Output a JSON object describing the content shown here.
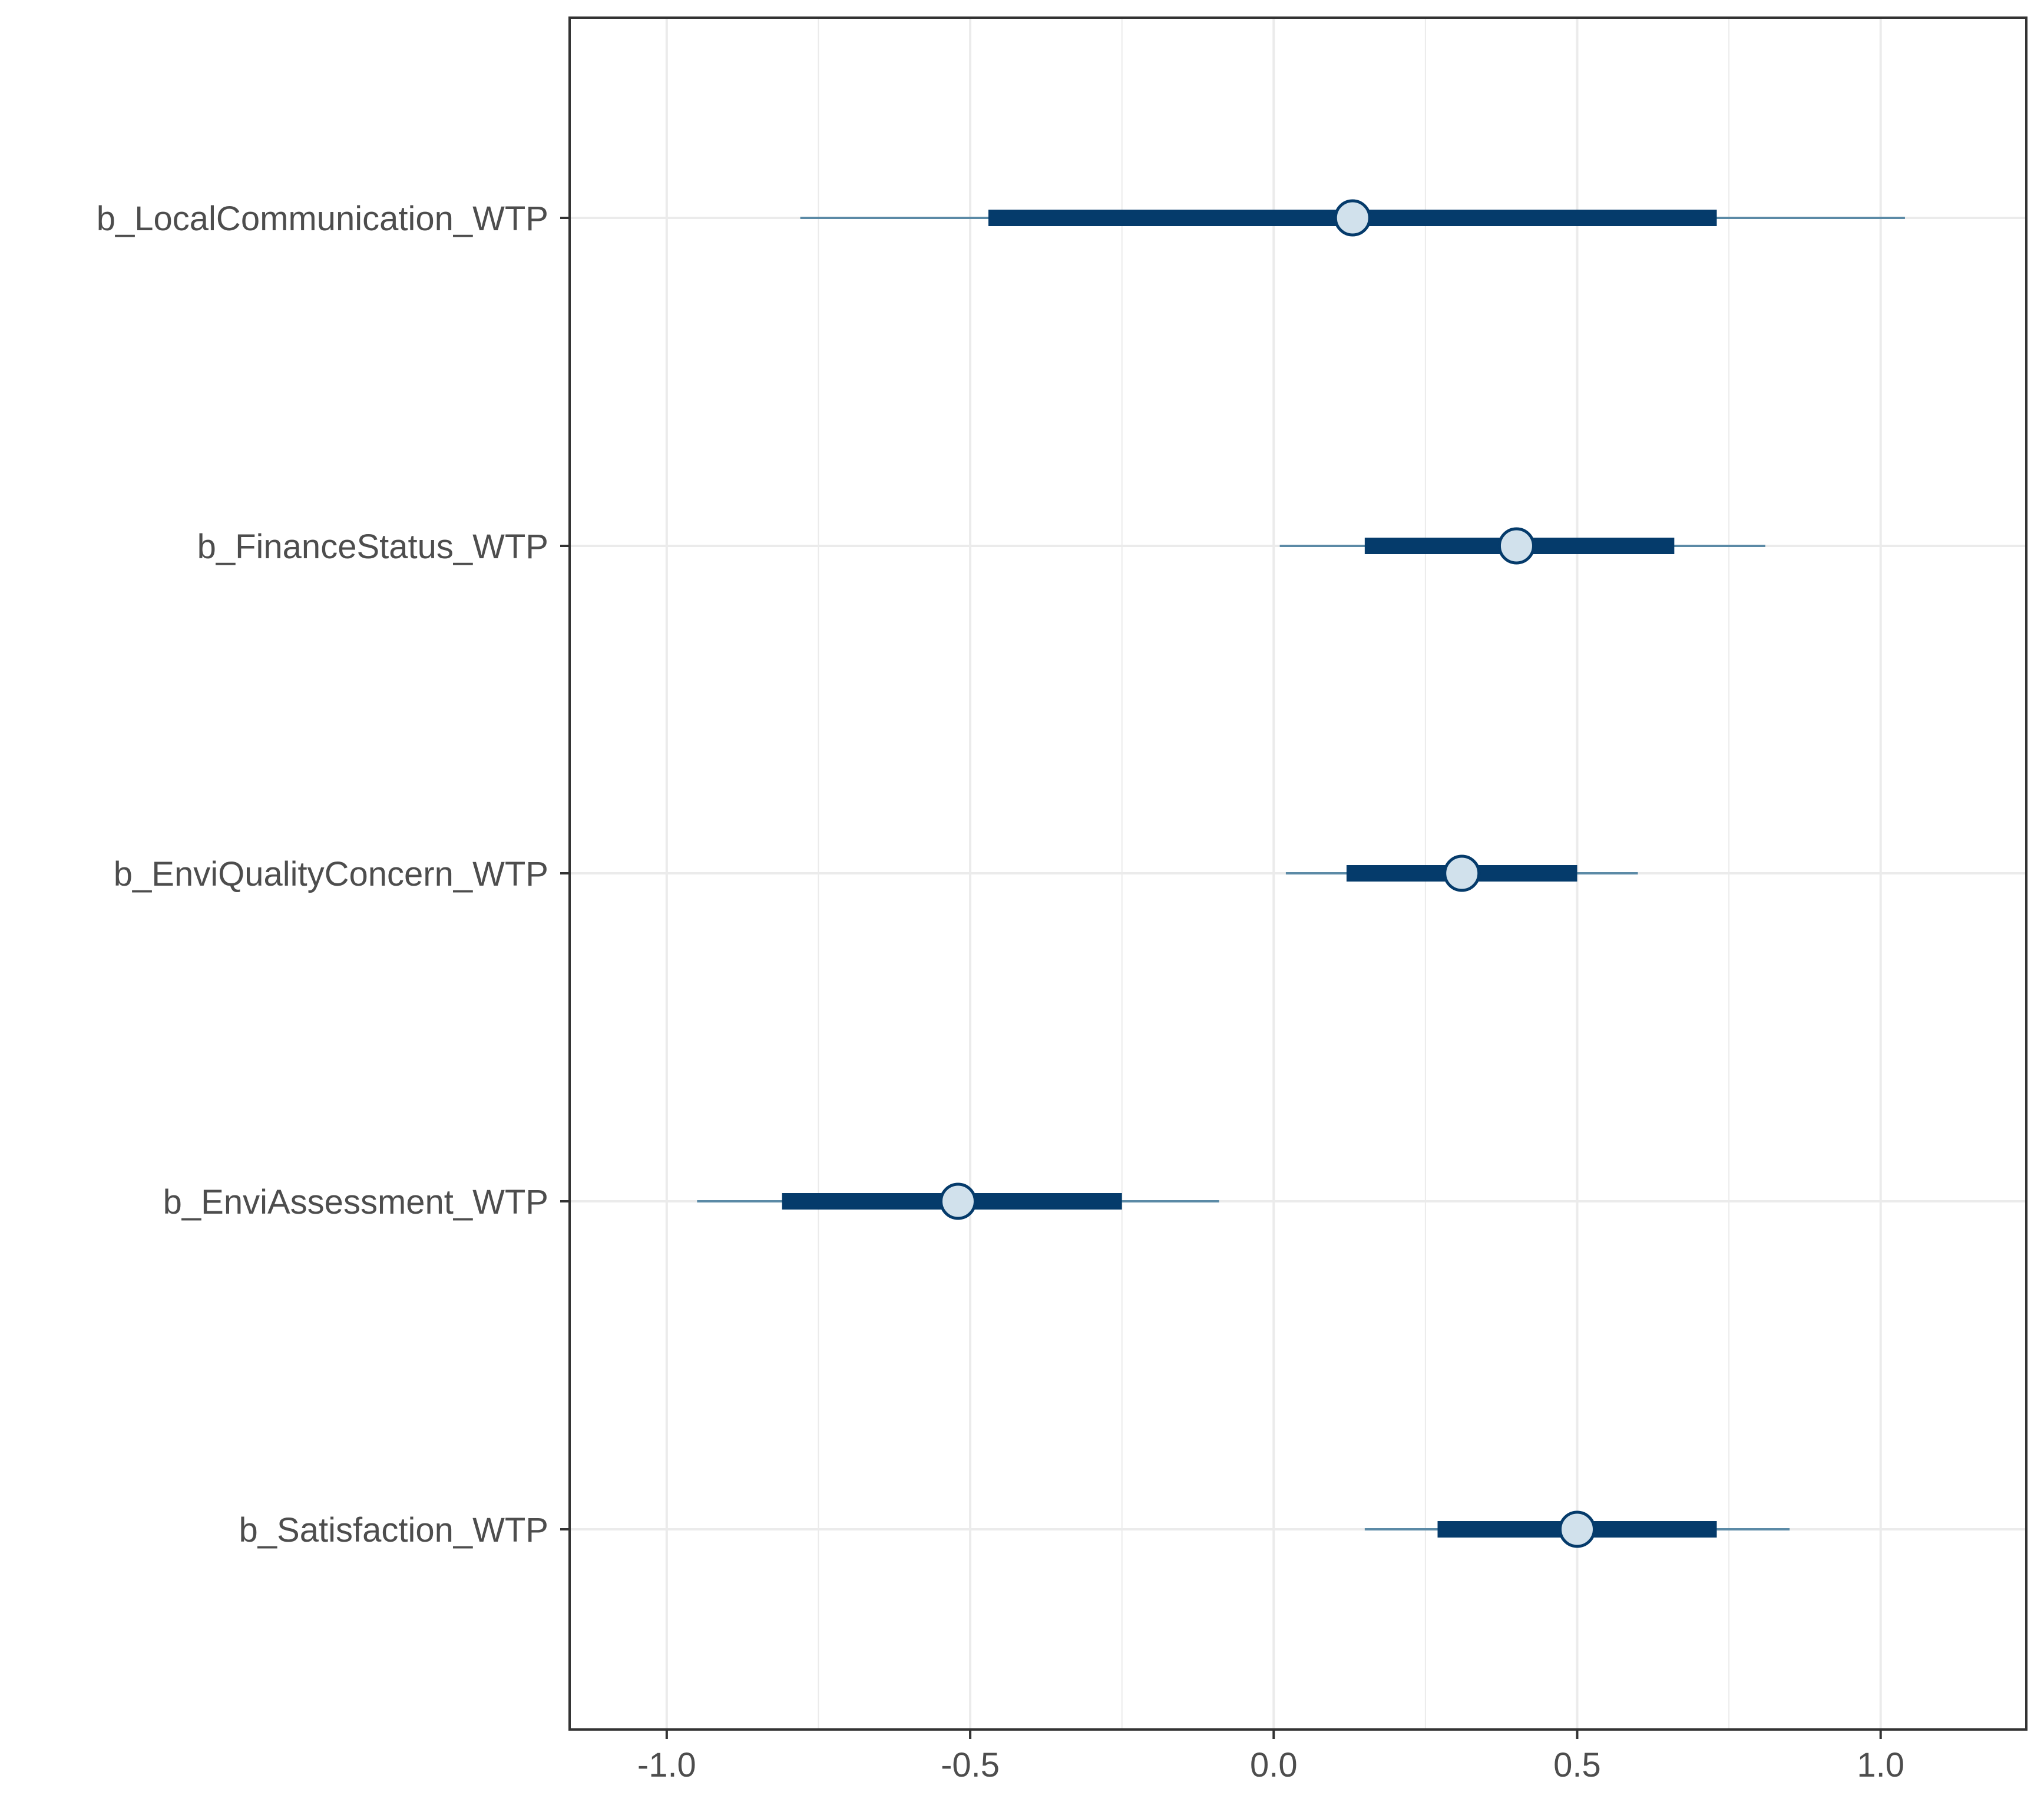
{
  "chart_data": {
    "type": "interval",
    "title": "",
    "xlabel": "",
    "ylabel": "",
    "xlim": [
      -1.16,
      1.24
    ],
    "x_ticks": [
      -1.0,
      -0.5,
      0.0,
      0.5,
      1.0
    ],
    "x_tick_labels": [
      "-1.0",
      "-0.5",
      "0.0",
      "0.5",
      "1.0"
    ],
    "grid": true,
    "colors": {
      "outer_line": "#5b8aa6",
      "inner_bar": "#053b6b",
      "point_fill": "#d1e1ec",
      "point_stroke": "#053b6b",
      "grid": "#ebebeb",
      "axis": "#333333",
      "text": "#4d4d4d"
    },
    "parameters": [
      {
        "label": "b_LocalCommunication_WTP",
        "outer_low": -0.78,
        "inner_low": -0.47,
        "estimate": 0.13,
        "inner_high": 0.73,
        "outer_high": 1.04
      },
      {
        "label": "b_FinanceStatus_WTP",
        "outer_low": 0.01,
        "inner_low": 0.15,
        "estimate": 0.4,
        "inner_high": 0.66,
        "outer_high": 0.81
      },
      {
        "label": "b_EnviQualityConcern_WTP",
        "outer_low": 0.02,
        "inner_low": 0.12,
        "estimate": 0.31,
        "inner_high": 0.5,
        "outer_high": 0.6
      },
      {
        "label": "b_EnviAssessment_WTP",
        "outer_low": -0.95,
        "inner_low": -0.81,
        "estimate": -0.52,
        "inner_high": -0.25,
        "outer_high": -0.09
      },
      {
        "label": "b_Satisfaction_WTP",
        "outer_low": 0.15,
        "inner_low": 0.27,
        "estimate": 0.5,
        "inner_high": 0.73,
        "outer_high": 0.85
      }
    ]
  }
}
